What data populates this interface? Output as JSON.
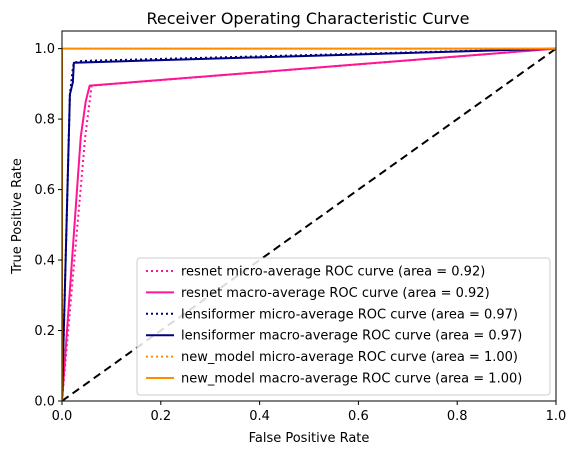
{
  "chart_data": {
    "type": "line",
    "title": "Receiver Operating Characteristic Curve",
    "xlabel": "False Positive Rate",
    "ylabel": "True Positive Rate",
    "xlim": [
      0.0,
      1.0
    ],
    "ylim": [
      0.0,
      1.05
    ],
    "xticks": [
      0.0,
      0.2,
      0.4,
      0.6,
      0.8,
      1.0
    ],
    "yticks": [
      0.0,
      0.2,
      0.4,
      0.6,
      0.8,
      1.0
    ],
    "xtick_labels": [
      "0.0",
      "0.2",
      "0.4",
      "0.6",
      "0.8",
      "1.0"
    ],
    "ytick_labels": [
      "0.0",
      "0.2",
      "0.4",
      "0.6",
      "0.8",
      "1.0"
    ],
    "grid": false,
    "legend_position": "lower-right",
    "series": [
      {
        "name": "resnet micro-average ROC curve (area = 0.92)",
        "color": "#ff1493",
        "style": "dotted",
        "x": [
          0.0,
          0.047,
          0.056,
          0.06,
          1.0
        ],
        "y": [
          0.0,
          0.75,
          0.85,
          0.895,
          1.0
        ]
      },
      {
        "name": "resnet macro-average ROC curve (area = 0.92)",
        "color": "#ff1493",
        "style": "solid",
        "x": [
          0.0,
          0.038,
          0.048,
          0.056,
          1.0
        ],
        "y": [
          0.0,
          0.75,
          0.85,
          0.895,
          1.0
        ]
      },
      {
        "name": "lensiformer micro-average ROC curve (area = 0.97)",
        "color": "#000080",
        "style": "dotted",
        "x": [
          0.0,
          0.016,
          0.022,
          0.024,
          0.04,
          1.0
        ],
        "y": [
          0.0,
          0.87,
          0.945,
          0.96,
          0.965,
          1.0
        ]
      },
      {
        "name": "lensiformer macro-average ROC curve (area = 0.97)",
        "color": "#000080",
        "style": "solid",
        "x": [
          0.0,
          0.016,
          0.022,
          0.024,
          1.0
        ],
        "y": [
          0.0,
          0.87,
          0.905,
          0.96,
          1.0
        ]
      },
      {
        "name": "new_model micro-average ROC curve (area = 1.00)",
        "color": "#ff8c00",
        "style": "dotted",
        "x": [
          0.0,
          0.0,
          1.0
        ],
        "y": [
          0.0,
          1.0,
          1.0
        ]
      },
      {
        "name": "new_model macro-average ROC curve (area = 1.00)",
        "color": "#ff8c00",
        "style": "solid",
        "x": [
          0.0,
          0.0,
          1.0
        ],
        "y": [
          0.0,
          1.0,
          1.0
        ]
      }
    ],
    "reference_line": {
      "color": "#000000",
      "style": "dashed",
      "x": [
        0.0,
        1.0
      ],
      "y": [
        0.0,
        1.0
      ]
    }
  }
}
